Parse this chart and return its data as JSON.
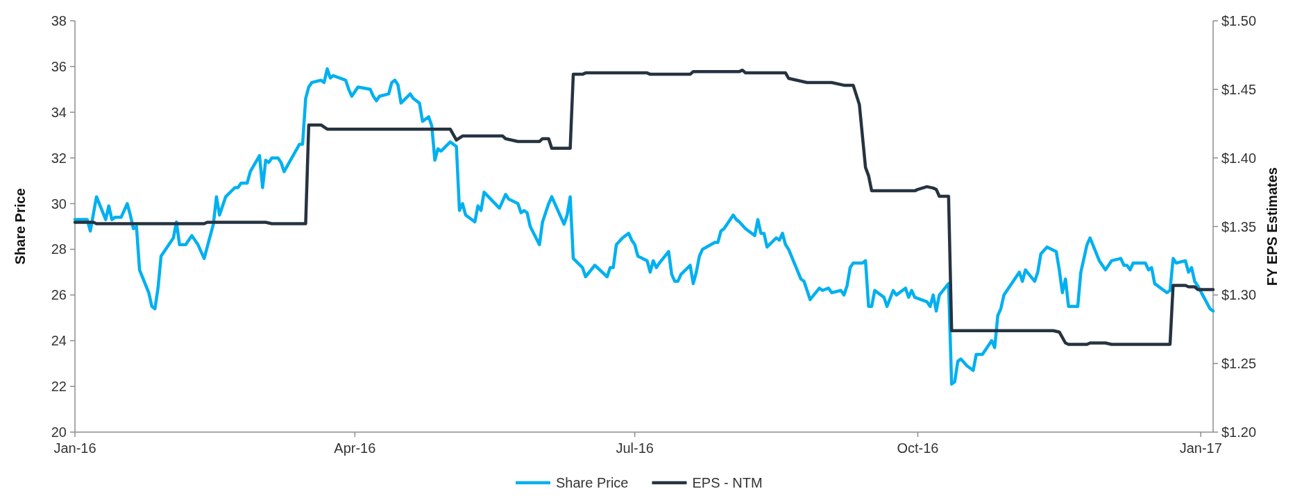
{
  "chart_data": {
    "type": "line",
    "ylabel": "Share Price",
    "y2label": "FY EPS Estimates",
    "xlim": [
      "2016-01-01",
      "2017-01-05"
    ],
    "xticks": [
      {
        "value": "2016-01-01",
        "label": "Jan-16"
      },
      {
        "value": "2016-04-01",
        "label": "Apr-16"
      },
      {
        "value": "2016-07-01",
        "label": "Jul-16"
      },
      {
        "value": "2016-10-01",
        "label": "Oct-16"
      },
      {
        "value": "2017-01-01",
        "label": "Jan-17"
      }
    ],
    "ylim": [
      20,
      38
    ],
    "yticks": [
      20,
      22,
      24,
      26,
      28,
      30,
      32,
      34,
      36,
      38
    ],
    "y2lim": [
      1.2,
      1.5
    ],
    "y2ticks": [
      {
        "value": 1.2,
        "label": "$1.20"
      },
      {
        "value": 1.25,
        "label": "$1.25"
      },
      {
        "value": 1.3,
        "label": "$1.30"
      },
      {
        "value": 1.35,
        "label": "$1.35"
      },
      {
        "value": 1.4,
        "label": "$1.40"
      },
      {
        "value": 1.45,
        "label": "$1.45"
      },
      {
        "value": 1.5,
        "label": "$1.50"
      }
    ],
    "legend": "bottom",
    "grid": false,
    "series": [
      {
        "name": "Share Price",
        "color": "#00b0f0",
        "x": [
          "2016-01-01",
          "2016-01-05",
          "2016-01-06",
          "2016-01-08",
          "2016-01-11",
          "2016-01-12",
          "2016-01-13",
          "2016-01-14",
          "2016-01-16",
          "2016-01-18",
          "2016-01-19",
          "2016-01-20",
          "2016-01-21",
          "2016-01-22",
          "2016-01-25",
          "2016-01-26",
          "2016-01-27",
          "2016-01-28",
          "2016-01-29",
          "2016-02-02",
          "2016-02-03",
          "2016-02-04",
          "2016-02-06",
          "2016-02-08",
          "2016-02-10",
          "2016-02-12",
          "2016-02-15",
          "2016-02-16",
          "2016-02-17",
          "2016-02-19",
          "2016-02-22",
          "2016-02-23",
          "2016-02-24",
          "2016-02-26",
          "2016-02-27",
          "2016-03-01",
          "2016-03-02",
          "2016-03-03",
          "2016-03-04",
          "2016-03-05",
          "2016-03-07",
          "2016-03-08",
          "2016-03-09",
          "2016-03-14",
          "2016-03-15",
          "2016-03-16",
          "2016-03-17",
          "2016-03-18",
          "2016-03-21",
          "2016-03-22",
          "2016-03-23",
          "2016-03-24",
          "2016-03-25",
          "2016-03-29",
          "2016-03-30",
          "2016-03-31",
          "2016-04-02",
          "2016-04-06",
          "2016-04-07",
          "2016-04-08",
          "2016-04-09",
          "2016-04-12",
          "2016-04-13",
          "2016-04-14",
          "2016-04-15",
          "2016-04-16",
          "2016-04-19",
          "2016-04-20",
          "2016-04-21",
          "2016-04-22",
          "2016-04-23",
          "2016-04-25",
          "2016-04-26",
          "2016-04-27",
          "2016-04-28",
          "2016-04-29",
          "2016-05-02",
          "2016-05-04",
          "2016-05-05",
          "2016-05-06",
          "2016-05-07",
          "2016-05-10",
          "2016-05-11",
          "2016-05-12",
          "2016-05-13",
          "2016-05-18",
          "2016-05-20",
          "2016-05-21",
          "2016-05-24",
          "2016-05-25",
          "2016-05-26",
          "2016-05-27",
          "2016-05-28",
          "2016-05-31",
          "2016-06-01",
          "2016-06-02",
          "2016-06-03",
          "2016-06-04",
          "2016-06-08",
          "2016-06-09",
          "2016-06-10",
          "2016-06-11",
          "2016-06-14",
          "2016-06-15",
          "2016-06-18",
          "2016-06-22",
          "2016-06-23",
          "2016-06-24",
          "2016-06-25",
          "2016-06-27",
          "2016-06-29",
          "2016-06-30",
          "2016-07-01",
          "2016-07-02",
          "2016-07-05",
          "2016-07-06",
          "2016-07-07",
          "2016-07-08",
          "2016-07-09",
          "2016-07-12",
          "2016-07-13",
          "2016-07-14",
          "2016-07-15",
          "2016-07-16",
          "2016-07-19",
          "2016-07-20",
          "2016-07-21",
          "2016-07-22",
          "2016-07-23",
          "2016-07-27",
          "2016-07-28",
          "2016-07-29",
          "2016-07-30",
          "2016-08-02",
          "2016-08-03",
          "2016-08-04",
          "2016-08-06",
          "2016-08-09",
          "2016-08-10",
          "2016-08-11",
          "2016-08-12",
          "2016-08-13",
          "2016-08-16",
          "2016-08-17",
          "2016-08-18",
          "2016-08-19",
          "2016-08-20",
          "2016-08-24",
          "2016-08-25",
          "2016-08-27",
          "2016-08-30",
          "2016-08-31",
          "2016-09-02",
          "2016-09-03",
          "2016-09-06",
          "2016-09-07",
          "2016-09-08",
          "2016-09-09",
          "2016-09-10",
          "2016-09-13",
          "2016-09-14",
          "2016-09-15",
          "2016-09-16",
          "2016-09-17",
          "2016-09-20",
          "2016-09-21",
          "2016-09-23",
          "2016-09-24",
          "2016-09-27",
          "2016-09-28",
          "2016-09-29",
          "2016-09-30",
          "2016-10-04",
          "2016-10-05",
          "2016-10-06",
          "2016-10-07",
          "2016-10-08",
          "2016-10-11",
          "2016-10-12",
          "2016-10-13",
          "2016-10-14",
          "2016-10-15",
          "2016-10-17",
          "2016-10-19",
          "2016-10-20",
          "2016-10-21",
          "2016-10-22",
          "2016-10-25",
          "2016-10-26",
          "2016-10-27",
          "2016-10-28",
          "2016-10-29",
          "2016-11-02",
          "2016-11-03",
          "2016-11-04",
          "2016-11-05",
          "2016-11-08",
          "2016-11-09",
          "2016-11-10",
          "2016-11-12",
          "2016-11-15",
          "2016-11-16",
          "2016-11-17",
          "2016-11-18",
          "2016-11-19",
          "2016-11-22",
          "2016-11-23",
          "2016-11-25",
          "2016-11-26",
          "2016-11-29",
          "2016-12-01",
          "2016-12-03",
          "2016-12-06",
          "2016-12-07",
          "2016-12-08",
          "2016-12-09",
          "2016-12-10",
          "2016-12-14",
          "2016-12-15",
          "2016-12-16",
          "2016-12-17",
          "2016-12-21",
          "2016-12-22",
          "2016-12-23",
          "2016-12-24",
          "2016-12-27",
          "2016-12-28",
          "2016-12-29",
          "2016-12-30",
          "2016-12-31",
          "2017-01-04",
          "2017-01-05"
        ],
        "values": [
          29.3,
          29.3,
          28.8,
          30.3,
          29.3,
          29.9,
          29.3,
          29.4,
          29.4,
          30.0,
          29.5,
          28.9,
          29.0,
          27.1,
          26.1,
          25.5,
          25.4,
          26.3,
          27.7,
          28.5,
          29.2,
          28.2,
          28.2,
          28.6,
          28.2,
          27.6,
          29.1,
          30.3,
          29.5,
          30.3,
          30.7,
          30.7,
          30.9,
          30.9,
          31.4,
          32.1,
          30.7,
          31.9,
          31.8,
          32.0,
          32.0,
          31.8,
          31.4,
          32.6,
          32.6,
          34.6,
          35.1,
          35.3,
          35.4,
          35.3,
          35.9,
          35.5,
          35.6,
          35.4,
          35.0,
          34.7,
          35.1,
          35.0,
          34.7,
          34.5,
          34.7,
          34.8,
          35.3,
          35.4,
          35.2,
          34.4,
          34.8,
          34.6,
          34.5,
          34.4,
          33.6,
          33.8,
          33.4,
          31.9,
          32.4,
          32.3,
          32.7,
          32.5,
          29.7,
          30.0,
          29.5,
          29.2,
          29.9,
          29.7,
          30.5,
          29.8,
          30.4,
          30.2,
          30.0,
          29.6,
          29.7,
          29.6,
          29.0,
          28.2,
          29.2,
          29.6,
          30.0,
          30.3,
          29.1,
          29.5,
          30.3,
          27.6,
          27.2,
          26.8,
          27.3,
          26.8,
          27.2,
          27.2,
          28.2,
          28.5,
          28.7,
          28.4,
          28.2,
          27.7,
          27.5,
          27.0,
          27.5,
          27.2,
          27.4,
          27.9,
          26.9,
          26.6,
          26.6,
          26.9,
          27.3,
          26.5,
          27.0,
          27.7,
          28.0,
          28.3,
          28.3,
          28.8,
          28.9,
          29.5,
          29.3,
          29.2,
          28.9,
          28.6,
          29.3,
          28.7,
          28.7,
          28.1,
          28.5,
          28.4,
          28.7,
          28.2,
          28.0,
          26.7,
          26.6,
          25.8,
          26.3,
          26.2,
          26.3,
          26.1,
          26.2,
          26.0,
          26.4,
          27.2,
          27.4,
          27.4,
          27.5,
          25.5,
          25.5,
          26.2,
          25.9,
          25.5,
          26.2,
          26.0,
          26.3,
          25.9,
          26.2,
          25.9,
          25.7,
          25.5,
          26.0,
          25.3,
          26.0,
          26.5,
          22.1,
          22.2,
          23.1,
          23.2,
          22.9,
          22.7,
          23.4,
          23.4,
          23.4,
          24.0,
          23.7,
          25.1,
          25.4,
          26.0,
          26.8,
          27.0,
          26.6,
          27.1,
          26.6,
          27.0,
          27.8,
          28.1,
          27.9,
          27.1,
          26.1,
          26.7,
          25.5,
          25.5,
          27.0,
          28.2,
          28.5,
          27.5,
          27.1,
          27.5,
          27.6,
          27.3,
          27.3,
          27.1,
          27.4,
          27.4,
          27.1,
          27.2,
          26.5,
          26.1,
          26.2,
          27.6,
          27.4,
          27.5,
          27.0,
          27.2,
          26.6,
          26.4,
          25.4,
          25.3
        ]
      },
      {
        "name": "EPS - NTM",
        "color": "#263340",
        "axis": "y2",
        "x": [
          "2016-01-01",
          "2016-01-07",
          "2016-01-08",
          "2016-02-12",
          "2016-02-13",
          "2016-03-03",
          "2016-03-05",
          "2016-03-16",
          "2016-03-17",
          "2016-03-21",
          "2016-03-23",
          "2016-05-02",
          "2016-05-04",
          "2016-05-06",
          "2016-05-19",
          "2016-05-20",
          "2016-05-24",
          "2016-05-31",
          "2016-06-01",
          "2016-06-03",
          "2016-06-04",
          "2016-06-10",
          "2016-06-11",
          "2016-06-14",
          "2016-06-15",
          "2016-07-05",
          "2016-07-06",
          "2016-07-19",
          "2016-07-20",
          "2016-08-04",
          "2016-08-05",
          "2016-08-06",
          "2016-08-19",
          "2016-08-20",
          "2016-08-24",
          "2016-08-26",
          "2016-09-03",
          "2016-09-07",
          "2016-09-10",
          "2016-09-12",
          "2016-09-14",
          "2016-09-15",
          "2016-09-16",
          "2016-09-30",
          "2016-10-01",
          "2016-10-04",
          "2016-10-06",
          "2016-10-07",
          "2016-10-08",
          "2016-10-11",
          "2016-10-12",
          "2016-11-14",
          "2016-11-16",
          "2016-11-18",
          "2016-11-19",
          "2016-11-25",
          "2016-11-26",
          "2016-12-01",
          "2016-12-03",
          "2016-12-22",
          "2016-12-23",
          "2016-12-27",
          "2016-12-28",
          "2016-12-30",
          "2016-12-31",
          "2017-01-05"
        ],
        "values": [
          1.353,
          1.353,
          1.352,
          1.352,
          1.353,
          1.353,
          1.352,
          1.352,
          1.424,
          1.424,
          1.421,
          1.421,
          1.413,
          1.416,
          1.416,
          1.414,
          1.412,
          1.412,
          1.414,
          1.414,
          1.407,
          1.407,
          1.461,
          1.461,
          1.462,
          1.462,
          1.461,
          1.461,
          1.463,
          1.463,
          1.464,
          1.462,
          1.462,
          1.458,
          1.456,
          1.455,
          1.455,
          1.453,
          1.453,
          1.439,
          1.393,
          1.387,
          1.376,
          1.376,
          1.377,
          1.379,
          1.378,
          1.377,
          1.372,
          1.372,
          1.274,
          1.274,
          1.273,
          1.265,
          1.264,
          1.264,
          1.265,
          1.265,
          1.264,
          1.264,
          1.307,
          1.307,
          1.306,
          1.306,
          1.304,
          1.304
        ]
      }
    ]
  }
}
